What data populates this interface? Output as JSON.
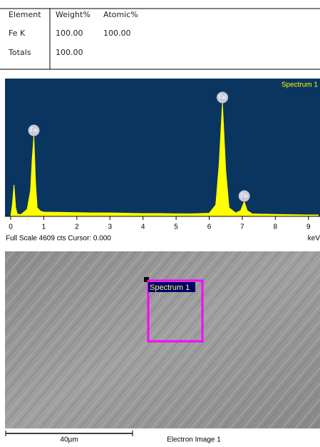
{
  "table": {
    "header": [
      "Element",
      "Weight%",
      "Atomic%"
    ],
    "rows": [
      [
        "Fe K",
        "100.00",
        "100.00"
      ],
      [
        "Totals",
        "100.00",
        null
      ]
    ]
  },
  "chart_data": {
    "type": "area",
    "title": "Spectrum 1",
    "color": "#ffff00",
    "background": "#0a3560",
    "status": "Full Scale 4609 cts Cursor: 0.000",
    "x_unit": "keV",
    "x": [
      0,
      0.05,
      0.1,
      0.15,
      0.2,
      0.3,
      0.4,
      0.5,
      0.6,
      0.65,
      0.7,
      0.75,
      0.8,
      0.9,
      1.0,
      1.5,
      2,
      2.5,
      3,
      3.5,
      4,
      4.5,
      5,
      5.5,
      6.0,
      6.2,
      6.3,
      6.4,
      6.5,
      6.6,
      6.8,
      6.95,
      7.06,
      7.15,
      7.3,
      7.5,
      8,
      8.5,
      9,
      9.3
    ],
    "values": [
      0,
      400,
      1100,
      300,
      80,
      60,
      150,
      250,
      900,
      2000,
      2800,
      1200,
      300,
      180,
      150,
      140,
      130,
      120,
      120,
      110,
      100,
      100,
      90,
      90,
      110,
      400,
      1800,
      3950,
      1600,
      300,
      120,
      200,
      510,
      200,
      90,
      80,
      70,
      60,
      50,
      50
    ],
    "xlim": [
      0,
      9.35
    ],
    "ylim": [
      0,
      4609
    ],
    "xticks": [
      0,
      1,
      2,
      3,
      4,
      5,
      6,
      7,
      8,
      9
    ],
    "annotations": [
      {
        "label": "Fe",
        "x": 0.7,
        "y": 2800
      },
      {
        "label": "Fe",
        "x": 6.4,
        "y": 3950
      },
      {
        "label": "Fe",
        "x": 7.06,
        "y": 510
      }
    ]
  },
  "image": {
    "marker_label": "Spectrum 1",
    "scale_label": "40µm",
    "caption": "Electron Image 1"
  }
}
